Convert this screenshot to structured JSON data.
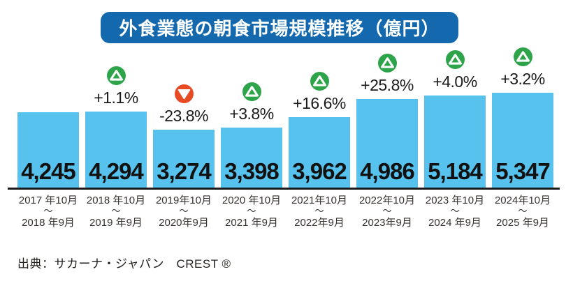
{
  "title": {
    "text": "外食業態の朝食市場規模推移（億円）"
  },
  "source": {
    "text": "出典：サカーナ・ジャパン　CREST ®"
  },
  "colors": {
    "bar": "#58C2EE",
    "title_bg": "#1368AE",
    "up": "#2EA44A",
    "down": "#E84B24",
    "axis": "#1A1A1A"
  },
  "chart_data": {
    "type": "bar",
    "title": "外食業態の朝食市場規模推移（億円）",
    "unit": "億円",
    "ylim": [
      0,
      5500
    ],
    "grid": false,
    "legend": false,
    "range_separator": "～",
    "categories": [
      {
        "from": "2017 年10月",
        "to": "2018 年9月"
      },
      {
        "from": "2018 年10月",
        "to": "2019 年9月"
      },
      {
        "from": "2019年10月",
        "to": "2020年9月"
      },
      {
        "from": "2020 年10月",
        "to": "2021 年9月"
      },
      {
        "from": "2021年10月",
        "to": "2022年9月"
      },
      {
        "from": "2022年10月",
        "to": "2023年9月"
      },
      {
        "from": "2023 年10月",
        "to": "2024 年9月"
      },
      {
        "from": "2024年10月",
        "to": "2025 年9月"
      }
    ],
    "values": [
      4245,
      4294,
      3274,
      3398,
      3962,
      4986,
      5184,
      5347
    ],
    "bars": [
      {
        "value": 4245,
        "label": "4,245",
        "change": null,
        "direction": null
      },
      {
        "value": 4294,
        "label": "4,294",
        "change": "+1.1%",
        "direction": "up"
      },
      {
        "value": 3274,
        "label": "3,274",
        "change": "-23.8%",
        "direction": "down"
      },
      {
        "value": 3398,
        "label": "3,398",
        "change": "+3.8%",
        "direction": "up"
      },
      {
        "value": 3962,
        "label": "3,962",
        "change": "+16.6%",
        "direction": "up"
      },
      {
        "value": 4986,
        "label": "4,986",
        "change": "+25.8%",
        "direction": "up"
      },
      {
        "value": 5184,
        "label": "5,184",
        "change": "+4.0%",
        "direction": "up"
      },
      {
        "value": 5347,
        "label": "5,347",
        "change": "+3.2%",
        "direction": "up"
      }
    ]
  }
}
